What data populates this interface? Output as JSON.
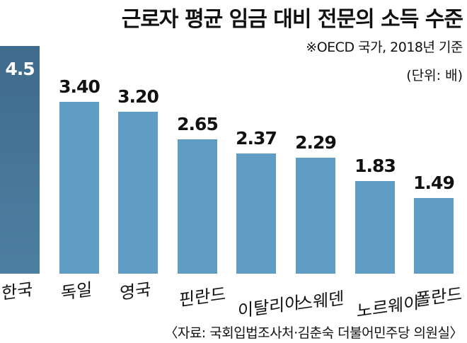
{
  "title": "근로자 평균 임금 대비 전문의 소득 수준",
  "note": "※OECD 국가, 2018년 기준",
  "unit": "(단위: 배)",
  "source": "〈자료: 국회입법조사처·김춘숙 더불어민주당 의원실〉",
  "colors": {
    "highlight": "#3f6b8c",
    "bar": "#5f9dc5"
  },
  "chart_data": {
    "type": "bar",
    "title": "근로자 평균 임금 대비 전문의 소득 수준",
    "categories": [
      "한국",
      "독일",
      "영국",
      "핀란드",
      "이탈리아",
      "스웨덴",
      "노르웨이",
      "폴란드"
    ],
    "values": [
      4.5,
      3.4,
      3.2,
      2.65,
      2.37,
      2.29,
      1.83,
      1.49
    ],
    "labels": [
      "4.5",
      "3.40",
      "3.20",
      "2.65",
      "2.37",
      "2.29",
      "1.83",
      "1.49"
    ],
    "highlight": "한국",
    "xlabel": "",
    "ylabel": "배",
    "ylim": [
      0,
      4.5
    ],
    "grid": false
  }
}
